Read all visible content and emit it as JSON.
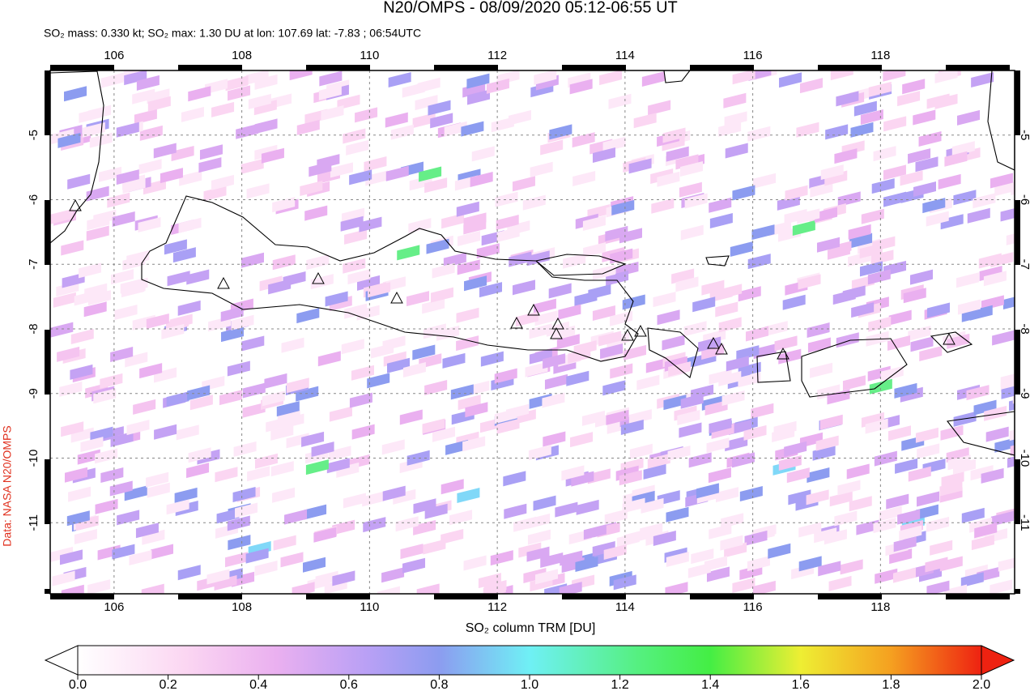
{
  "title": "N20/OMPS - 08/09/2020 05:12-06:55 UT",
  "subtitle": "SO₂ mass: 0.330 kt; SO₂ max: 1.30 DU at lon: 107.69 lat: -7.83 ; 06:54UTC",
  "side_label": "Data: NASA N20/OMPS",
  "map": {
    "xlim": [
      105,
      120.1
    ],
    "ylim": [
      -12.1,
      -4.0
    ],
    "xticks": [
      106,
      108,
      110,
      112,
      114,
      116,
      118
    ],
    "yticks": [
      -5,
      -6,
      -7,
      -8,
      -9,
      -10,
      -11
    ]
  },
  "colorbar": {
    "label": "SO₂ column TRM [DU]",
    "lim": [
      0,
      2
    ],
    "ticks": [
      {
        "value": 0,
        "label": "0.0"
      },
      {
        "value": 0.2,
        "label": "0.2"
      },
      {
        "value": 0.4,
        "label": "0.4"
      },
      {
        "value": 0.6,
        "label": "0.6"
      },
      {
        "value": 0.8,
        "label": "0.8"
      },
      {
        "value": 1,
        "label": "1.0"
      },
      {
        "value": 1.2,
        "label": "1.2"
      },
      {
        "value": 1.4,
        "label": "1.4"
      },
      {
        "value": 1.6,
        "label": "1.6"
      },
      {
        "value": 1.8,
        "label": "1.8"
      },
      {
        "value": 2,
        "label": "2.0"
      }
    ]
  }
}
